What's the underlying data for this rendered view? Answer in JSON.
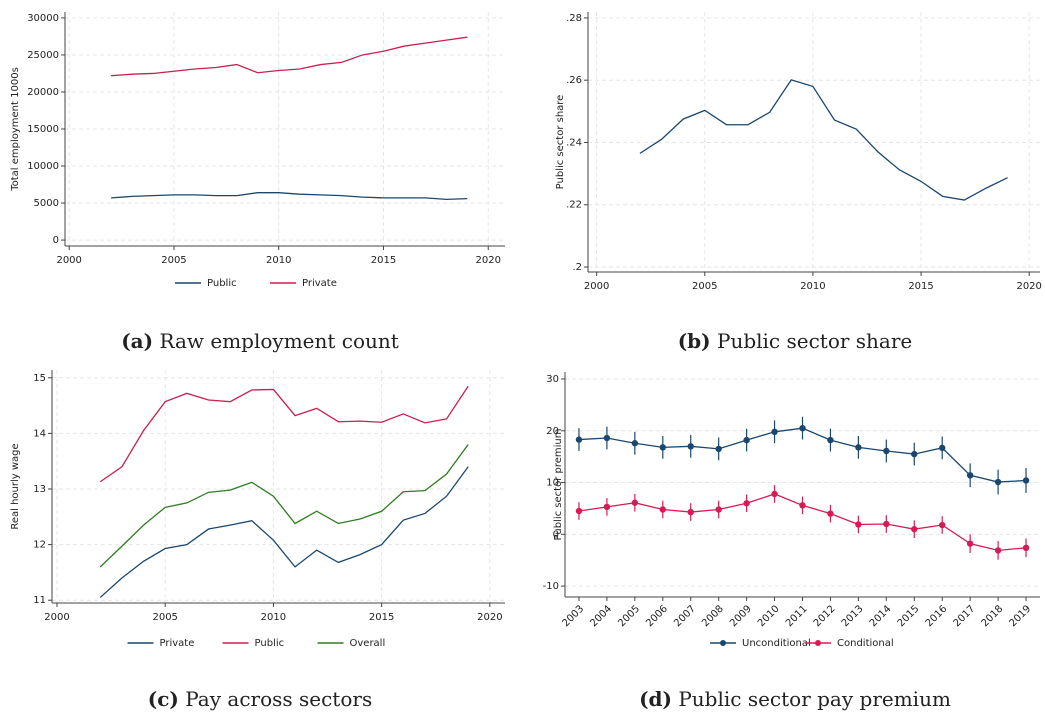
{
  "chart_data": [
    {
      "type": "line",
      "label": "(a)",
      "caption": "Raw employment count",
      "ylabel": "Total employment 1000s",
      "x": [
        2002,
        2003,
        2004,
        2005,
        2006,
        2007,
        2008,
        2009,
        2010,
        2011,
        2012,
        2013,
        2014,
        2015,
        2016,
        2017,
        2018,
        2019
      ],
      "series": [
        {
          "name": "Public",
          "color": "#1a476f",
          "values": [
            5700,
            5900,
            6000,
            6100,
            6100,
            6000,
            6000,
            6400,
            6400,
            6200,
            6100,
            6000,
            5800,
            5700,
            5700,
            5700,
            5500,
            5600
          ]
        },
        {
          "name": "Private",
          "color": "#c8204f",
          "values": [
            22200,
            22400,
            22500,
            22800,
            23100,
            23300,
            23700,
            22600,
            22900,
            23100,
            23700,
            24000,
            25000,
            25500,
            26200,
            26600,
            27000,
            27400
          ]
        }
      ],
      "xlim": [
        1999.8,
        2020.8
      ],
      "xticks": [
        2000,
        2005,
        2010,
        2015,
        2020
      ],
      "ylim": [
        -800,
        30800
      ],
      "yticks": [
        0,
        5000,
        10000,
        15000,
        20000,
        25000,
        30000
      ],
      "grid": true,
      "legend": "bottom"
    },
    {
      "type": "line",
      "label": "(b)",
      "caption": "Public sector share",
      "ylabel": "Public sector share",
      "x": [
        2002,
        2003,
        2004,
        2005,
        2006,
        2007,
        2008,
        2009,
        2010,
        2011,
        2012,
        2013,
        2014,
        2015,
        2016,
        2017,
        2018,
        2019
      ],
      "series": [
        {
          "color": "#1a476f",
          "values": [
            0.2365,
            0.241,
            0.2475,
            0.2503,
            0.2457,
            0.2457,
            0.2497,
            0.2601,
            0.258,
            0.2472,
            0.2443,
            0.237,
            0.2312,
            0.2275,
            0.2227,
            0.2215,
            0.2253,
            0.2287
          ]
        }
      ],
      "xlim": [
        1999.6,
        2020.5
      ],
      "xticks": [
        2000,
        2005,
        2010,
        2015,
        2020
      ],
      "ylim": [
        0.1984,
        0.2819
      ],
      "yticks": [
        {
          "value": 0.2,
          "label": ".2"
        },
        {
          "value": 0.22,
          "label": ".22"
        },
        {
          "value": 0.24,
          "label": ".24"
        },
        {
          "value": 0.26,
          "label": ".26"
        },
        {
          "value": 0.28,
          "label": ".28"
        }
      ],
      "grid": true
    },
    {
      "type": "line",
      "label": "(c)",
      "caption": "Pay across sectors",
      "ylabel": "Real hourly wage",
      "x": [
        2002,
        2003,
        2004,
        2005,
        2006,
        2007,
        2008,
        2009,
        2010,
        2011,
        2012,
        2013,
        2014,
        2015,
        2016,
        2017,
        2018,
        2019
      ],
      "series": [
        {
          "name": "Private",
          "color": "#1a476f",
          "values": [
            11.05,
            11.4,
            11.7,
            11.93,
            12.0,
            12.28,
            12.35,
            12.43,
            12.08,
            11.6,
            11.9,
            11.68,
            11.82,
            12.0,
            12.44,
            12.56,
            12.87,
            13.4
          ]
        },
        {
          "name": "Public",
          "color": "#c8204f",
          "values": [
            13.13,
            13.4,
            14.05,
            14.57,
            14.72,
            14.6,
            14.57,
            14.78,
            14.79,
            14.32,
            14.45,
            14.21,
            14.22,
            14.2,
            14.35,
            14.19,
            14.26,
            14.85
          ]
        },
        {
          "name": "Overall",
          "color": "#2e7d1e",
          "values": [
            11.6,
            11.97,
            12.35,
            12.67,
            12.75,
            12.94,
            12.98,
            13.12,
            12.87,
            12.38,
            12.6,
            12.38,
            12.46,
            12.6,
            12.95,
            12.97,
            13.27,
            13.8
          ]
        }
      ],
      "xlim": [
        1999.77,
        2020.7
      ],
      "xticks": [
        2000,
        2005,
        2010,
        2015,
        2020
      ],
      "ylim": [
        10.95,
        15.14
      ],
      "yticks": [
        11,
        12,
        13,
        14,
        15
      ],
      "grid": true,
      "legend": "bottom"
    },
    {
      "type": "errorbar",
      "label": "(d)",
      "caption": "Public sector pay premium",
      "ylabel": "Public sector premium",
      "categories": [
        "2003",
        "2004",
        "2005",
        "2006",
        "2007",
        "2008",
        "2009",
        "2010",
        "2011",
        "2012",
        "2013",
        "2014",
        "2015",
        "2016",
        "2017",
        "2018",
        "2019"
      ],
      "series": [
        {
          "name": "Unconditional",
          "color": "#1a476f",
          "values": [
            18.3,
            18.6,
            17.6,
            16.8,
            17.0,
            16.5,
            18.2,
            19.8,
            20.5,
            18.2,
            16.8,
            16.1,
            15.5,
            16.7,
            11.4,
            10.1,
            10.4
          ],
          "errors": [
            2.2,
            2.2,
            2.2,
            2.2,
            2.2,
            2.2,
            2.2,
            2.2,
            2.2,
            2.2,
            2.2,
            2.2,
            2.2,
            2.2,
            2.3,
            2.4,
            2.4
          ]
        },
        {
          "name": "Conditional",
          "color": "#d81b55",
          "values": [
            4.5,
            5.3,
            6.1,
            4.8,
            4.3,
            4.8,
            6.0,
            7.8,
            5.6,
            4.0,
            1.9,
            2.0,
            1.0,
            1.8,
            -1.8,
            -3.1,
            -2.6
          ],
          "errors": [
            1.7,
            1.7,
            1.7,
            1.7,
            1.7,
            1.7,
            1.7,
            1.7,
            1.7,
            1.7,
            1.7,
            1.7,
            1.7,
            1.7,
            1.8,
            1.8,
            1.8
          ]
        }
      ],
      "ylim": [
        -12.1,
        31.35
      ],
      "yticks": [
        -10,
        0,
        10,
        20,
        30
      ],
      "grid": true,
      "legend": "bottom"
    }
  ]
}
